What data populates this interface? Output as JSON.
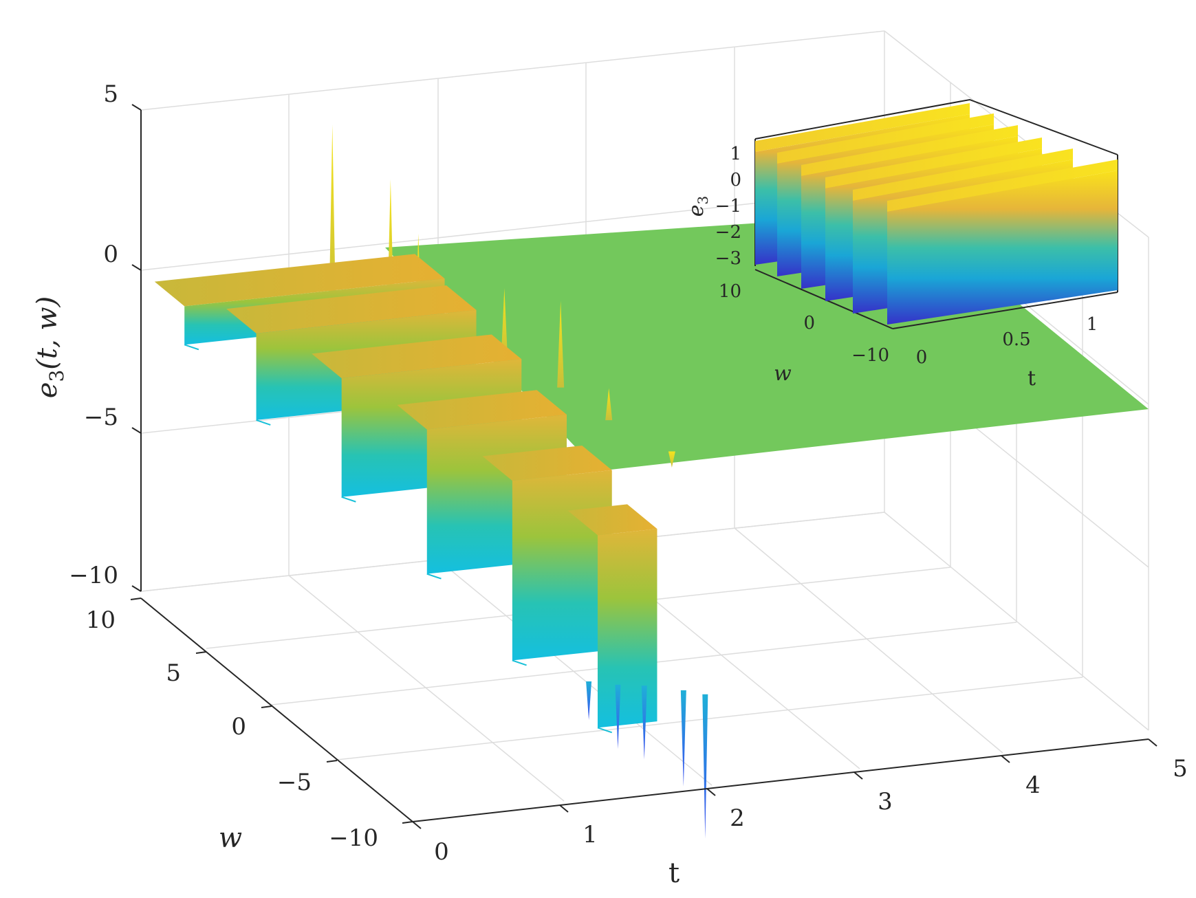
{
  "chart_data": [
    {
      "type": "surface",
      "xlabel": "t",
      "ylabel": "w",
      "zlabel": "e3(t, w)",
      "xlim": [
        0,
        5
      ],
      "ylim": [
        -10,
        10
      ],
      "zlim": [
        -10,
        5
      ],
      "x_ticks": [
        "0",
        "1",
        "2",
        "3",
        "4",
        "5"
      ],
      "y_ticks": [
        "10",
        "5",
        "0",
        "−5",
        "−10"
      ],
      "z_ticks": [
        "5",
        "0",
        "−5",
        "−10"
      ],
      "grid": true,
      "colormap": "parula",
      "description_values": {
        "ridges": [
          {
            "t_start": 0.0,
            "w": 8.0,
            "z_top": 0.0,
            "z_bottom": -1.2
          },
          {
            "t_start": 0.3,
            "w": 6.0,
            "z_top": -0.3,
            "z_bottom": -3.0
          },
          {
            "t_start": 0.6,
            "w": 3.0,
            "z_top": -0.8,
            "z_bottom": -4.5
          },
          {
            "t_start": 0.9,
            "w": 0.0,
            "z_top": -1.5,
            "z_bottom": -6.0
          },
          {
            "t_start": 1.2,
            "w": -3.0,
            "z_top": -2.2,
            "z_bottom": -7.8
          },
          {
            "t_start": 1.5,
            "w": -6.0,
            "z_top": -3.0,
            "z_bottom": -9.0
          }
        ],
        "plateau_value": 0,
        "spike_max": 4.5,
        "spike_min": -10
      }
    },
    {
      "type": "surface",
      "inset": true,
      "xlabel": "t",
      "ylabel": "w",
      "zlabel": "e3",
      "xlim": [
        0,
        1.2
      ],
      "ylim": [
        -10,
        10
      ],
      "zlim": [
        -3.5,
        1.5
      ],
      "x_ticks": [
        "0",
        "0.5",
        "1"
      ],
      "y_ticks": [
        "10",
        "0",
        "−10"
      ],
      "z_ticks": [
        "1",
        "0",
        "−1",
        "−2",
        "−3"
      ],
      "colormap": "parula"
    }
  ],
  "colors": {
    "plateau": "#73c85c",
    "ridge_top": "#e4b53a",
    "ridge_bottom": "#16c6d8",
    "spike_down": "#4466ee",
    "grid": "#dcdcdc",
    "axis": "#262626"
  },
  "labels": {
    "main_z_prefix": "e",
    "main_z_sub": "3",
    "main_z_args": "(t, w)",
    "main_y": "w",
    "main_x": "t",
    "inset_z_prefix": "e",
    "inset_z_sub": "3",
    "inset_y": "w",
    "inset_x": "t"
  }
}
